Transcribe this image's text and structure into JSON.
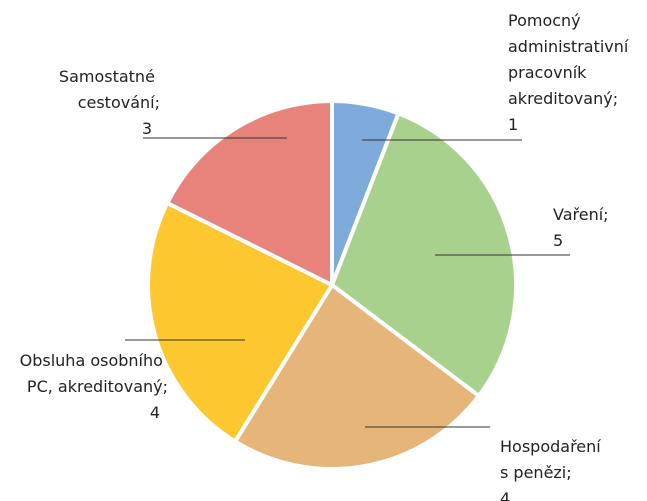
{
  "chart_data": {
    "type": "pie",
    "categories": [
      "Pomocný administrativní pracovník akreditovaný;",
      "Vaření;",
      "Hospodaření s penězi;",
      "Obsluha osobního PC, akreditovaný;",
      "Samostatné cestování;"
    ],
    "values": [
      1,
      5,
      4,
      4,
      3
    ],
    "colors": [
      "#7eaadc",
      "#a9d18e",
      "#e6b57a",
      "#fcc72f",
      "#e8837b"
    ]
  }
}
